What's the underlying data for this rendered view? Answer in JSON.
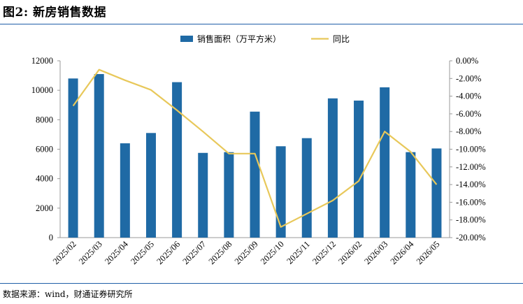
{
  "figure_title": "图2: 新房销售数据",
  "source": "数据来源：wind，财通证券研究所",
  "colors": {
    "bar": "#1f6aa5",
    "line": "#e8c85a",
    "rule": "#1f5fa8"
  },
  "chart_data": {
    "type": "bar",
    "categories": [
      "2025/02",
      "2025/03",
      "2025/04",
      "2025/05",
      "2025/06",
      "2025/07",
      "2025/08",
      "2025/09",
      "2025/10",
      "2025/11",
      "2025/12",
      "2026/02",
      "2026/03",
      "2026/04",
      "2026/05"
    ],
    "series": [
      {
        "name": "销售面积（万平方米）",
        "type": "bar",
        "axis": "left",
        "values": [
          10800,
          11100,
          6400,
          7100,
          10550,
          5750,
          5800,
          8550,
          6200,
          6750,
          9450,
          9300,
          10200,
          5800,
          6050
        ]
      },
      {
        "name": "同比",
        "type": "line",
        "axis": "right",
        "values": [
          -5.1,
          -1.0,
          -2.2,
          -3.3,
          -5.6,
          -8.0,
          -10.5,
          -10.5,
          -18.8,
          -17.3,
          -15.8,
          -13.6,
          -8.0,
          -10.3,
          -14.0
        ]
      }
    ],
    "y_left": {
      "min": 0,
      "max": 12000,
      "ticks": [
        "0",
        "2000",
        "4000",
        "6000",
        "8000",
        "10000",
        "12000"
      ]
    },
    "y_right": {
      "min": -20,
      "max": 0,
      "ticks": [
        "0.00%",
        "-2.00%",
        "-4.00%",
        "-6.00%",
        "-8.00%",
        "-10.00%",
        "-12.00%",
        "-14.00%",
        "-16.00%",
        "-18.00%",
        "-20.00%"
      ]
    },
    "grid": false,
    "legend_position": "top-center"
  }
}
